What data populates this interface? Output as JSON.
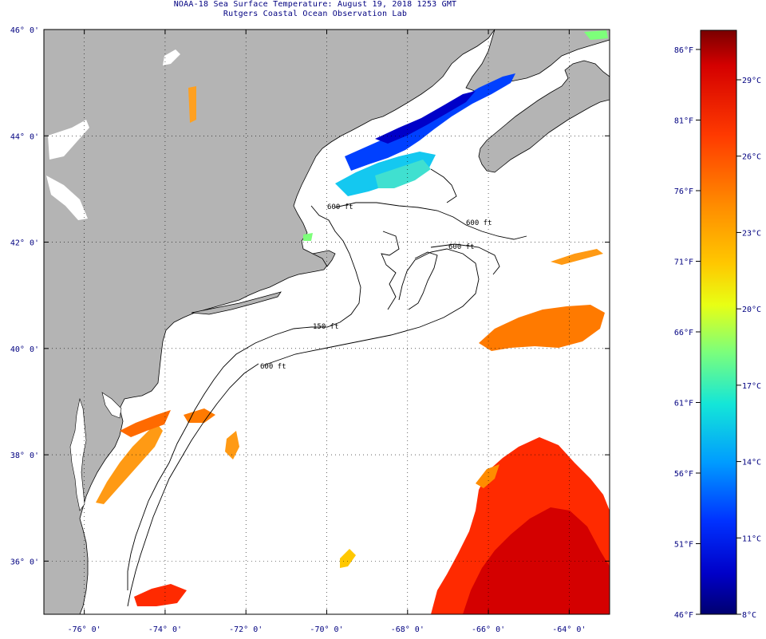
{
  "title": {
    "line1": "NOAA-18 Sea Surface Temperature:  August 19, 2018 1253 GMT",
    "line2": "Rutgers Coastal Ocean Observation Lab"
  },
  "map": {
    "lon_range": [
      -77,
      -63
    ],
    "lat_range": [
      35,
      46
    ],
    "lat_ticks": [
      {
        "value": 46,
        "label": "46° 0'"
      },
      {
        "value": 44,
        "label": "44° 0'"
      },
      {
        "value": 42,
        "label": "42° 0'"
      },
      {
        "value": 40,
        "label": "40° 0'"
      },
      {
        "value": 38,
        "label": "38° 0'"
      },
      {
        "value": 36,
        "label": "36° 0'"
      }
    ],
    "lon_ticks": [
      {
        "value": -76,
        "label": "-76° 0'"
      },
      {
        "value": -74,
        "label": "-74° 0'"
      },
      {
        "value": -72,
        "label": "-72° 0'"
      },
      {
        "value": -70,
        "label": "-70° 0'"
      },
      {
        "value": -68,
        "label": "-68° 0'"
      },
      {
        "value": -66,
        "label": "-66° 0'"
      },
      {
        "value": -64,
        "label": "-64° 0'"
      }
    ],
    "isobaths": {
      "label_150": "150 ft",
      "label_600_a": "600 ft",
      "label_600_b": "600 ft",
      "label_600_c": "600 ft",
      "label_600_d": "600 ft"
    },
    "colors": {
      "land": "#b4b4b4",
      "ocean": "#ffffff",
      "grid": "#000000",
      "frame": "#000000"
    }
  },
  "colorbar": {
    "fahrenheit": [
      "86°F",
      "81°F",
      "76°F",
      "71°F",
      "66°F",
      "61°F",
      "56°F",
      "51°F",
      "46°F"
    ],
    "celsius": [
      "29°C",
      "26°C",
      "23°C",
      "20°C",
      "17°C",
      "14°C",
      "11°C",
      "8°C"
    ],
    "gradient_stops": [
      "#7a0000",
      "#d40000",
      "#ff3a00",
      "#ff8c00",
      "#ffc800",
      "#e8ff14",
      "#7dff7a",
      "#14e6d8",
      "#009cff",
      "#0032ff",
      "#0000c8",
      "#000070"
    ]
  }
}
